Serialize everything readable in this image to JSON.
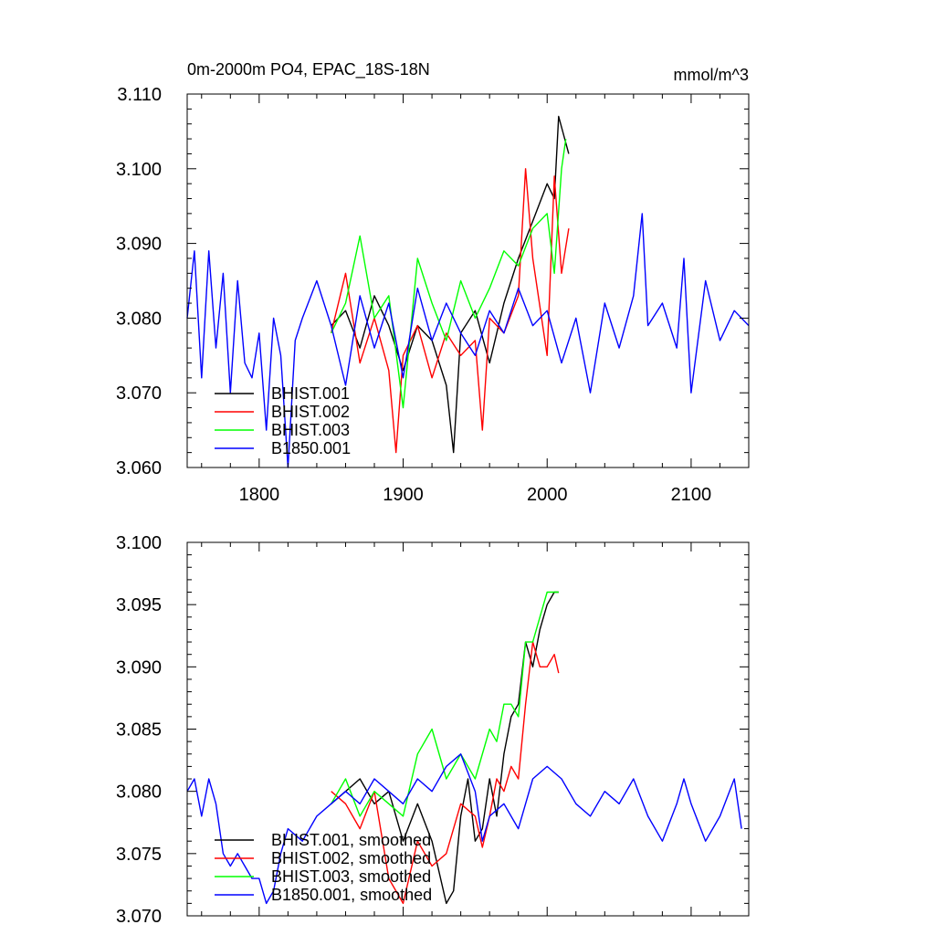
{
  "chart_data": [
    {
      "type": "line",
      "title": "0m-2000m PO4, EPAC_18S-18N",
      "units": "mmol/m^3",
      "xlim": [
        1750,
        2140
      ],
      "ylim": [
        3.06,
        3.11
      ],
      "xticks": [
        1800,
        1900,
        2000,
        2100
      ],
      "xtick_labels": [
        "1800",
        "1900",
        "2000",
        "2100"
      ],
      "yticks": [
        3.06,
        3.07,
        3.08,
        3.09,
        3.1,
        3.11
      ],
      "ytick_labels": [
        "3.060",
        "3.070",
        "3.080",
        "3.090",
        "3.100",
        "3.110"
      ],
      "grid": false,
      "legend_position": "bottom-left",
      "series": [
        {
          "name": "BHIST.001",
          "color": "#000000",
          "x": [
            1850,
            1860,
            1870,
            1880,
            1890,
            1900,
            1910,
            1920,
            1930,
            1935,
            1940,
            1950,
            1960,
            1970,
            1980,
            1990,
            2000,
            2005,
            2008,
            2015
          ],
          "y": [
            3.079,
            3.081,
            3.076,
            3.083,
            3.079,
            3.073,
            3.079,
            3.077,
            3.071,
            3.062,
            3.078,
            3.081,
            3.074,
            3.082,
            3.088,
            3.093,
            3.098,
            3.096,
            3.107,
            3.102
          ]
        },
        {
          "name": "BHIST.002",
          "color": "#ff0000",
          "x": [
            1850,
            1860,
            1870,
            1880,
            1890,
            1895,
            1900,
            1910,
            1920,
            1930,
            1940,
            1950,
            1955,
            1960,
            1970,
            1980,
            1985,
            1990,
            2000,
            2005,
            2010,
            2015
          ],
          "y": [
            3.078,
            3.086,
            3.074,
            3.08,
            3.073,
            3.062,
            3.075,
            3.079,
            3.072,
            3.078,
            3.075,
            3.077,
            3.065,
            3.08,
            3.078,
            3.083,
            3.1,
            3.088,
            3.075,
            3.099,
            3.086,
            3.092
          ]
        },
        {
          "name": "BHIST.003",
          "color": "#00ff00",
          "x": [
            1850,
            1860,
            1870,
            1880,
            1890,
            1900,
            1910,
            1920,
            1930,
            1940,
            1950,
            1960,
            1970,
            1980,
            1990,
            2000,
            2005,
            2010,
            2013
          ],
          "y": [
            3.078,
            3.082,
            3.091,
            3.08,
            3.083,
            3.068,
            3.088,
            3.082,
            3.077,
            3.085,
            3.08,
            3.084,
            3.089,
            3.087,
            3.092,
            3.094,
            3.086,
            3.1,
            3.104
          ]
        },
        {
          "name": "B1850.001",
          "color": "#0000ff",
          "x": [
            1750,
            1755,
            1760,
            1765,
            1770,
            1775,
            1780,
            1785,
            1790,
            1795,
            1800,
            1805,
            1810,
            1815,
            1820,
            1825,
            1830,
            1840,
            1850,
            1860,
            1870,
            1880,
            1890,
            1900,
            1910,
            1920,
            1930,
            1940,
            1950,
            1960,
            1970,
            1980,
            1990,
            2000,
            2010,
            2020,
            2030,
            2040,
            2050,
            2060,
            2066,
            2070,
            2080,
            2090,
            2095,
            2100,
            2110,
            2120,
            2130,
            2140
          ],
          "y": [
            3.08,
            3.089,
            3.072,
            3.089,
            3.076,
            3.086,
            3.07,
            3.085,
            3.074,
            3.072,
            3.078,
            3.065,
            3.08,
            3.075,
            3.06,
            3.077,
            3.08,
            3.085,
            3.079,
            3.071,
            3.083,
            3.076,
            3.082,
            3.072,
            3.084,
            3.077,
            3.082,
            3.078,
            3.075,
            3.081,
            3.078,
            3.084,
            3.079,
            3.081,
            3.074,
            3.08,
            3.07,
            3.082,
            3.076,
            3.083,
            3.094,
            3.079,
            3.082,
            3.076,
            3.088,
            3.07,
            3.085,
            3.077,
            3.081,
            3.079
          ]
        }
      ]
    },
    {
      "type": "line",
      "title": "",
      "xlim": [
        1750,
        2140
      ],
      "ylim": [
        3.07,
        3.1
      ],
      "xticks": [
        1800,
        1900,
        2000,
        2100
      ],
      "xtick_labels": [],
      "yticks": [
        3.07,
        3.075,
        3.08,
        3.085,
        3.09,
        3.095,
        3.1
      ],
      "ytick_labels": [
        "3.070",
        "3.075",
        "3.080",
        "3.085",
        "3.090",
        "3.095",
        "3.100"
      ],
      "grid": false,
      "legend_position": "bottom-left",
      "series": [
        {
          "name": "BHIST.001, smoothed",
          "color": "#000000",
          "x": [
            1850,
            1860,
            1870,
            1880,
            1890,
            1900,
            1910,
            1920,
            1930,
            1935,
            1940,
            1945,
            1950,
            1955,
            1960,
            1965,
            1970,
            1975,
            1980,
            1985,
            1990,
            1995,
            2000,
            2005,
            2008
          ],
          "y": [
            3.079,
            3.08,
            3.081,
            3.079,
            3.08,
            3.076,
            3.079,
            3.076,
            3.071,
            3.072,
            3.078,
            3.081,
            3.076,
            3.077,
            3.081,
            3.078,
            3.083,
            3.086,
            3.087,
            3.092,
            3.09,
            3.093,
            3.095,
            3.096,
            3.096
          ]
        },
        {
          "name": "BHIST.002, smoothed",
          "color": "#ff0000",
          "x": [
            1850,
            1860,
            1870,
            1880,
            1890,
            1900,
            1910,
            1920,
            1930,
            1940,
            1950,
            1955,
            1960,
            1965,
            1970,
            1975,
            1980,
            1985,
            1990,
            1995,
            2000,
            2005,
            2008
          ],
          "y": [
            3.08,
            3.079,
            3.077,
            3.08,
            3.073,
            3.071,
            3.076,
            3.074,
            3.075,
            3.079,
            3.078,
            3.0755,
            3.078,
            3.081,
            3.08,
            3.082,
            3.081,
            3.087,
            3.092,
            3.09,
            3.09,
            3.091,
            3.0895
          ]
        },
        {
          "name": "BHIST.003, smoothed",
          "color": "#00ff00",
          "x": [
            1850,
            1860,
            1870,
            1880,
            1890,
            1900,
            1910,
            1920,
            1930,
            1940,
            1950,
            1960,
            1965,
            1970,
            1975,
            1980,
            1985,
            1990,
            1995,
            2000,
            2005,
            2008
          ],
          "y": [
            3.079,
            3.081,
            3.078,
            3.08,
            3.079,
            3.078,
            3.083,
            3.085,
            3.081,
            3.083,
            3.081,
            3.085,
            3.084,
            3.087,
            3.087,
            3.086,
            3.092,
            3.092,
            3.094,
            3.096,
            3.096,
            3.096
          ]
        },
        {
          "name": "B1850.001, smoothed",
          "color": "#0000ff",
          "x": [
            1750,
            1755,
            1760,
            1765,
            1770,
            1775,
            1780,
            1785,
            1790,
            1795,
            1800,
            1805,
            1810,
            1815,
            1820,
            1830,
            1840,
            1850,
            1860,
            1870,
            1880,
            1890,
            1900,
            1910,
            1920,
            1930,
            1940,
            1950,
            1955,
            1960,
            1970,
            1980,
            1990,
            2000,
            2010,
            2020,
            2030,
            2040,
            2050,
            2060,
            2070,
            2080,
            2090,
            2095,
            2100,
            2110,
            2120,
            2130,
            2135
          ],
          "y": [
            3.08,
            3.081,
            3.078,
            3.081,
            3.079,
            3.075,
            3.074,
            3.075,
            3.074,
            3.073,
            3.073,
            3.071,
            3.072,
            3.075,
            3.077,
            3.076,
            3.078,
            3.079,
            3.08,
            3.079,
            3.081,
            3.08,
            3.079,
            3.081,
            3.08,
            3.082,
            3.083,
            3.08,
            3.076,
            3.078,
            3.079,
            3.077,
            3.081,
            3.082,
            3.081,
            3.079,
            3.078,
            3.08,
            3.079,
            3.081,
            3.078,
            3.076,
            3.079,
            3.081,
            3.079,
            3.076,
            3.078,
            3.081,
            3.077
          ]
        }
      ]
    }
  ]
}
